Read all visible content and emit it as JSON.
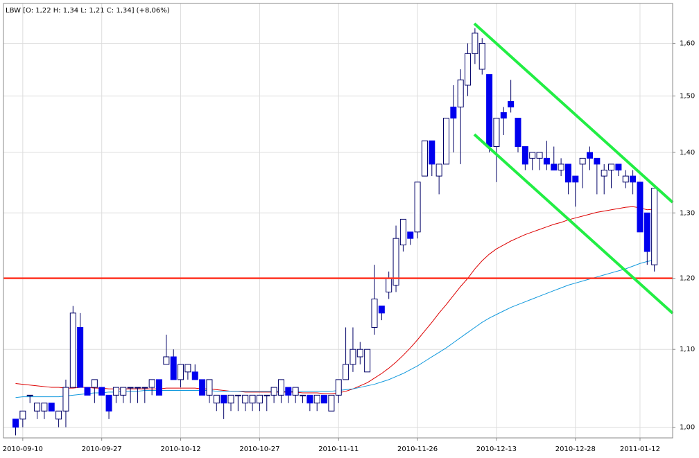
{
  "chart_data": {
    "type": "candlestick",
    "title": "LBW [O: 1,22  H: 1,34  L: 1,21  C: 1,34] (+8,06%)",
    "log_scale": true,
    "grid": true,
    "ylim": [
      0.987,
      1.68
    ],
    "yticks": [
      {
        "value": 1.0,
        "label": "1,00"
      },
      {
        "value": 1.1,
        "label": "1,10"
      },
      {
        "value": 1.2,
        "label": "1,20"
      },
      {
        "value": 1.3,
        "label": "1,30"
      },
      {
        "value": 1.4,
        "label": "1,40"
      },
      {
        "value": 1.5,
        "label": "1,50"
      },
      {
        "value": 1.6,
        "label": "1,60"
      }
    ],
    "up_color": "#ffffff",
    "down_color": "#0000ee",
    "edge_color": "#000066",
    "categories": [
      null,
      "2010-09-10",
      null,
      null,
      null,
      null,
      null,
      null,
      null,
      null,
      null,
      null,
      "2010-09-27",
      null,
      null,
      null,
      null,
      null,
      null,
      null,
      null,
      null,
      null,
      "2010-10-12",
      null,
      null,
      null,
      null,
      null,
      null,
      null,
      null,
      null,
      null,
      "2010-10-27",
      null,
      null,
      null,
      null,
      null,
      null,
      null,
      null,
      null,
      null,
      "2010-11-11",
      null,
      null,
      null,
      null,
      null,
      null,
      null,
      null,
      null,
      null,
      "2010-11-26",
      null,
      null,
      null,
      null,
      null,
      null,
      null,
      null,
      null,
      null,
      "2010-12-13",
      null,
      null,
      null,
      null,
      null,
      null,
      null,
      null,
      null,
      null,
      "2010-12-28",
      null,
      null,
      null,
      null,
      null,
      null,
      null,
      null,
      "2011-01-12",
      null,
      null
    ],
    "open": [
      1.01,
      1.01,
      1.04,
      1.02,
      1.02,
      1.03,
      1.01,
      1.02,
      1.05,
      1.13,
      1.05,
      1.05,
      1.05,
      1.04,
      1.04,
      1.04,
      1.05,
      1.05,
      1.05,
      1.05,
      1.06,
      1.08,
      1.09,
      1.06,
      1.07,
      1.07,
      1.06,
      1.04,
      1.03,
      1.04,
      1.03,
      1.04,
      1.03,
      1.03,
      1.03,
      1.04,
      1.04,
      1.04,
      1.05,
      1.04,
      1.04,
      1.04,
      1.03,
      1.04,
      1.02,
      1.04,
      1.06,
      1.08,
      1.09,
      1.07,
      1.13,
      1.16,
      1.18,
      1.19,
      1.25,
      1.27,
      1.27,
      1.36,
      1.42,
      1.36,
      1.38,
      1.48,
      1.48,
      1.52,
      1.58,
      1.55,
      1.54,
      1.41,
      1.47,
      1.49,
      1.46,
      1.41,
      1.39,
      1.39,
      1.39,
      1.38,
      1.37,
      1.38,
      1.36,
      1.38,
      1.4,
      1.39,
      1.36,
      1.37,
      1.38,
      1.35,
      1.36,
      1.35,
      1.3,
      1.22
    ],
    "high": [
      1.01,
      1.02,
      1.04,
      1.03,
      1.03,
      1.03,
      1.02,
      1.06,
      1.16,
      1.15,
      1.05,
      1.06,
      1.05,
      1.04,
      1.05,
      1.05,
      1.05,
      1.05,
      1.05,
      1.06,
      1.06,
      1.12,
      1.1,
      1.08,
      1.08,
      1.08,
      1.06,
      1.06,
      1.04,
      1.04,
      1.04,
      1.04,
      1.04,
      1.04,
      1.04,
      1.04,
      1.05,
      1.06,
      1.05,
      1.05,
      1.04,
      1.04,
      1.04,
      1.04,
      1.04,
      1.06,
      1.13,
      1.13,
      1.11,
      1.1,
      1.22,
      1.16,
      1.21,
      1.28,
      1.29,
      1.27,
      1.35,
      1.42,
      1.42,
      1.38,
      1.46,
      1.52,
      1.55,
      1.6,
      1.63,
      1.61,
      1.54,
      1.46,
      1.48,
      1.53,
      1.46,
      1.41,
      1.4,
      1.4,
      1.42,
      1.41,
      1.39,
      1.38,
      1.36,
      1.39,
      1.41,
      1.39,
      1.38,
      1.38,
      1.38,
      1.37,
      1.37,
      1.35,
      1.3,
      1.34
    ],
    "low": [
      0.99,
      1.0,
      1.03,
      1.01,
      1.01,
      1.02,
      1.0,
      1.0,
      1.05,
      1.05,
      1.04,
      1.03,
      1.04,
      1.01,
      1.03,
      1.03,
      1.03,
      1.03,
      1.03,
      1.04,
      1.04,
      1.08,
      1.06,
      1.05,
      1.06,
      1.06,
      1.04,
      1.03,
      1.02,
      1.01,
      1.02,
      1.02,
      1.02,
      1.02,
      1.02,
      1.02,
      1.03,
      1.03,
      1.03,
      1.03,
      1.03,
      1.02,
      1.02,
      1.03,
      1.02,
      1.03,
      1.06,
      1.07,
      1.08,
      1.07,
      1.12,
      1.14,
      1.17,
      1.18,
      1.24,
      1.25,
      1.26,
      1.36,
      1.36,
      1.33,
      1.38,
      1.4,
      1.38,
      1.5,
      1.56,
      1.54,
      1.4,
      1.35,
      1.43,
      1.47,
      1.4,
      1.37,
      1.37,
      1.37,
      1.37,
      1.37,
      1.36,
      1.33,
      1.31,
      1.34,
      1.37,
      1.33,
      1.33,
      1.34,
      1.36,
      1.34,
      1.33,
      1.27,
      1.22,
      1.21
    ],
    "close": [
      1.0,
      1.02,
      1.04,
      1.03,
      1.03,
      1.02,
      1.02,
      1.05,
      1.15,
      1.05,
      1.04,
      1.06,
      1.04,
      1.02,
      1.05,
      1.05,
      1.05,
      1.05,
      1.05,
      1.06,
      1.04,
      1.09,
      1.06,
      1.08,
      1.08,
      1.06,
      1.04,
      1.06,
      1.04,
      1.03,
      1.04,
      1.04,
      1.04,
      1.04,
      1.04,
      1.04,
      1.05,
      1.06,
      1.04,
      1.05,
      1.04,
      1.03,
      1.04,
      1.03,
      1.04,
      1.06,
      1.08,
      1.1,
      1.1,
      1.1,
      1.17,
      1.15,
      1.2,
      1.26,
      1.29,
      1.26,
      1.35,
      1.42,
      1.38,
      1.38,
      1.46,
      1.46,
      1.53,
      1.58,
      1.62,
      1.6,
      1.41,
      1.46,
      1.46,
      1.48,
      1.41,
      1.38,
      1.4,
      1.4,
      1.38,
      1.37,
      1.38,
      1.35,
      1.35,
      1.39,
      1.39,
      1.38,
      1.37,
      1.38,
      1.37,
      1.36,
      1.35,
      1.27,
      1.24,
      1.34
    ],
    "lines": [
      {
        "color": "#dd0000",
        "values": [
          1.055,
          1.054,
          1.053,
          1.052,
          1.051,
          1.05,
          1.05,
          1.049,
          1.049,
          1.05,
          1.05,
          1.049,
          1.049,
          1.048,
          1.048,
          1.048,
          1.048,
          1.048,
          1.048,
          1.048,
          1.048,
          1.049,
          1.049,
          1.049,
          1.049,
          1.049,
          1.048,
          1.048,
          1.047,
          1.046,
          1.045,
          1.045,
          1.044,
          1.044,
          1.044,
          1.044,
          1.044,
          1.044,
          1.044,
          1.044,
          1.043,
          1.043,
          1.043,
          1.042,
          1.042,
          1.043,
          1.045,
          1.048,
          1.052,
          1.056,
          1.062,
          1.068,
          1.075,
          1.083,
          1.092,
          1.102,
          1.113,
          1.125,
          1.137,
          1.15,
          1.162,
          1.175,
          1.188,
          1.2,
          1.214,
          1.226,
          1.236,
          1.244,
          1.25,
          1.256,
          1.261,
          1.266,
          1.27,
          1.274,
          1.278,
          1.282,
          1.285,
          1.289,
          1.292,
          1.295,
          1.298,
          1.301,
          1.303,
          1.305,
          1.307,
          1.309,
          1.31,
          1.308,
          1.305,
          1.306
        ]
      },
      {
        "color": "#1199dd",
        "values": [
          1.037,
          1.038,
          1.038,
          1.038,
          1.038,
          1.038,
          1.038,
          1.039,
          1.04,
          1.041,
          1.042,
          1.043,
          1.043,
          1.044,
          1.044,
          1.045,
          1.045,
          1.045,
          1.046,
          1.046,
          1.046,
          1.046,
          1.046,
          1.046,
          1.046,
          1.046,
          1.046,
          1.046,
          1.045,
          1.045,
          1.045,
          1.045,
          1.045,
          1.045,
          1.045,
          1.045,
          1.045,
          1.045,
          1.045,
          1.045,
          1.045,
          1.045,
          1.045,
          1.045,
          1.045,
          1.046,
          1.047,
          1.048,
          1.05,
          1.052,
          1.054,
          1.057,
          1.06,
          1.064,
          1.068,
          1.073,
          1.078,
          1.084,
          1.09,
          1.096,
          1.102,
          1.109,
          1.116,
          1.123,
          1.13,
          1.137,
          1.143,
          1.148,
          1.153,
          1.158,
          1.162,
          1.166,
          1.17,
          1.174,
          1.178,
          1.182,
          1.186,
          1.19,
          1.193,
          1.196,
          1.199,
          1.202,
          1.205,
          1.208,
          1.211,
          1.214,
          1.218,
          1.222,
          1.225,
          1.227
        ]
      }
    ],
    "reference_line": {
      "value": 1.2,
      "color": "#ff3322"
    }
  }
}
